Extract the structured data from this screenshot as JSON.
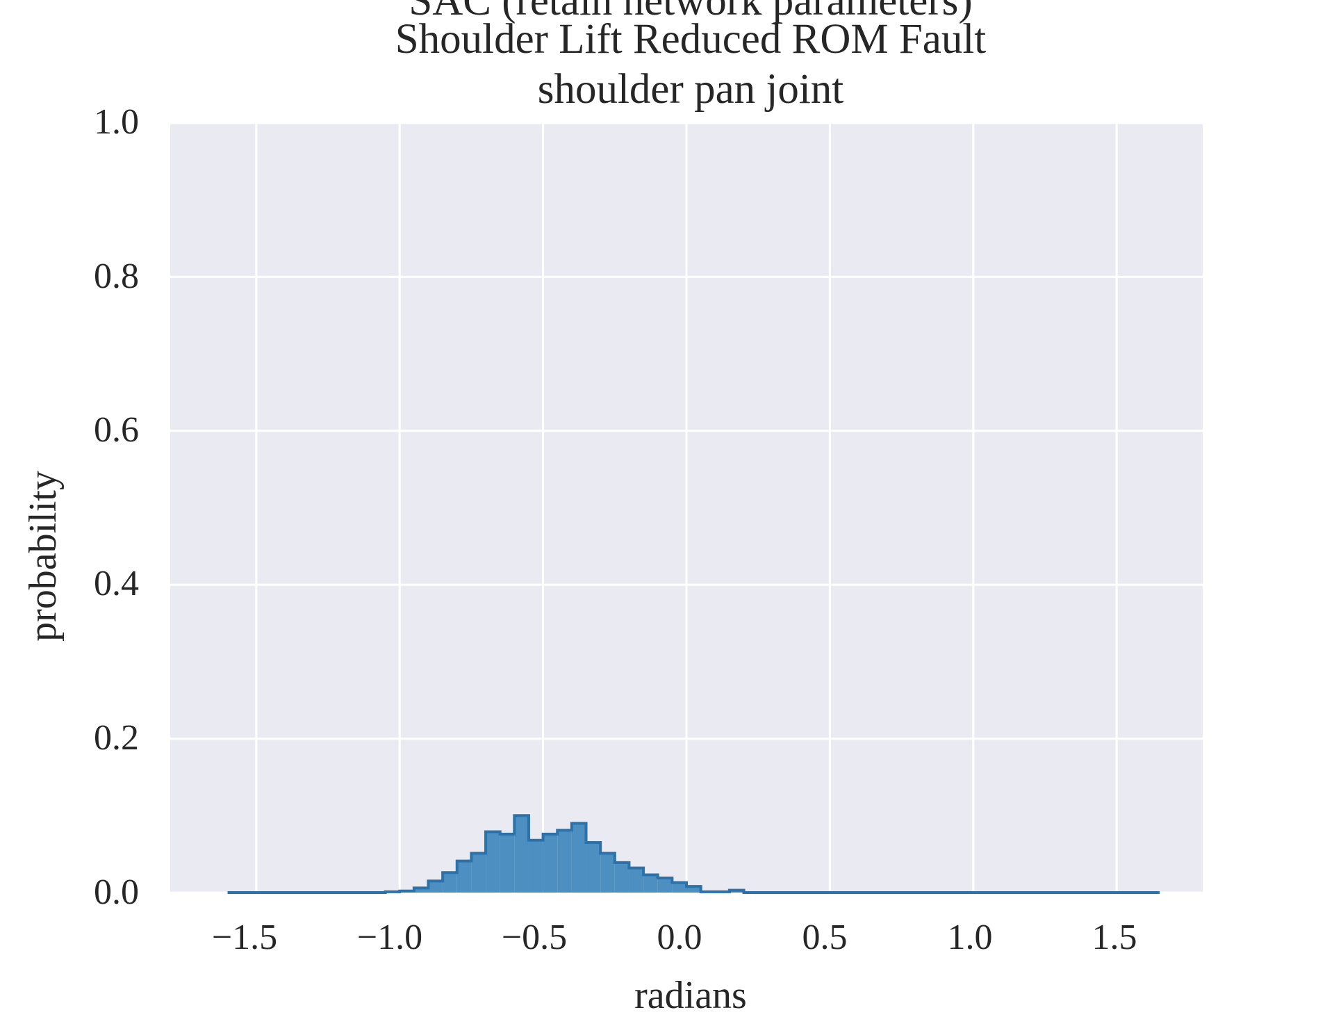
{
  "chart_data": {
    "type": "bar",
    "title_lines": [
      "SAC (retain network parameters)",
      "Shoulder Lift Reduced ROM Fault",
      "shoulder pan joint"
    ],
    "xlabel": "radians",
    "ylabel": "probability",
    "xlim": [
      -1.8,
      1.8
    ],
    "ylim": [
      0.0,
      1.0
    ],
    "xticks": [
      "−1.5",
      "−1.0",
      "−0.5",
      "0.0",
      "0.5",
      "1.0",
      "1.5"
    ],
    "xtick_values": [
      -1.5,
      -1.0,
      -0.5,
      0.0,
      0.5,
      1.0,
      1.5
    ],
    "yticks": [
      "0.0",
      "0.2",
      "0.4",
      "0.6",
      "0.8",
      "1.0"
    ],
    "ytick_values": [
      0.0,
      0.2,
      0.4,
      0.6,
      0.8,
      1.0
    ],
    "grid": true,
    "bin_edges": [
      -1.6,
      -1.05,
      -1.0,
      -0.95,
      -0.9,
      -0.85,
      -0.8,
      -0.75,
      -0.7,
      -0.65,
      -0.6,
      -0.55,
      -0.5,
      -0.45,
      -0.4,
      -0.35,
      -0.3,
      -0.25,
      -0.2,
      -0.15,
      -0.1,
      -0.05,
      0.0,
      0.05,
      0.1,
      0.15,
      0.2,
      0.25,
      1.65
    ],
    "values": [
      0.0,
      0.001,
      0.002,
      0.006,
      0.015,
      0.026,
      0.041,
      0.051,
      0.079,
      0.076,
      0.1,
      0.068,
      0.076,
      0.081,
      0.09,
      0.065,
      0.051,
      0.039,
      0.032,
      0.023,
      0.019,
      0.013,
      0.008,
      0.001,
      0.001,
      0.003,
      0.0,
      0.0
    ],
    "colors": {
      "fill": "#4c8fc0",
      "edge": "#2c72aa",
      "background": "#eaeaf2",
      "grid": "#ffffff",
      "text": "#262626"
    }
  }
}
